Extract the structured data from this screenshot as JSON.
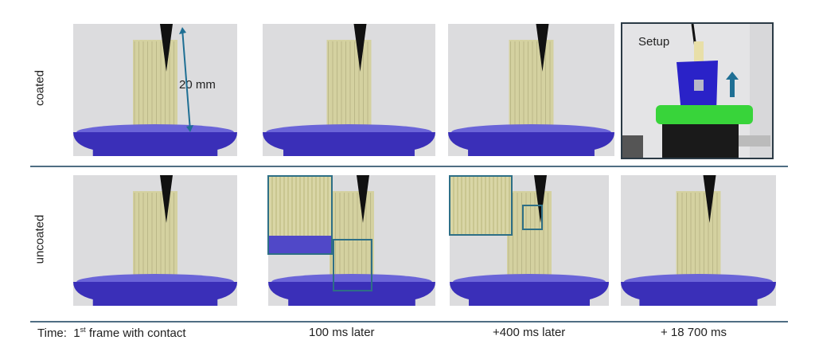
{
  "rows": [
    {
      "label": "coated"
    },
    {
      "label": "uncoated"
    }
  ],
  "annotations": {
    "length": "20 mm",
    "setup": "Setup"
  },
  "time": {
    "prefix": "Time:",
    "t1_num": "1",
    "t1_sup": "st",
    "t1_rest": " frame with contact",
    "t2": "100 ms later",
    "t3": "+400 ms later",
    "t4": "+ 18 700 ms"
  },
  "colors": {
    "separator": "#4f6e83",
    "inset_border": "#2e6f86",
    "liquid": "#3a2fb8",
    "arrow": "#1f6f94",
    "stand": "#38d43a"
  }
}
